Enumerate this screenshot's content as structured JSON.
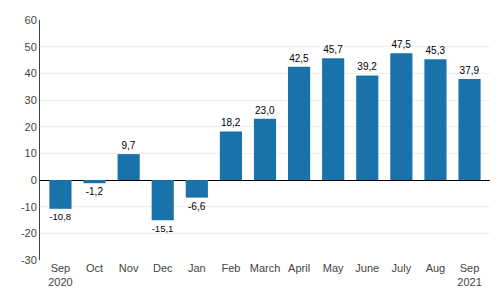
{
  "chart_data": {
    "type": "bar",
    "categories": [
      "Sep\n2020",
      "Oct",
      "Nov",
      "Dec",
      "Jan",
      "Feb",
      "March",
      "April",
      "May",
      "June",
      "July",
      "Aug",
      "Sep\n2021"
    ],
    "values": [
      -10.8,
      -1.2,
      9.7,
      -15.1,
      -6.6,
      18.2,
      23.0,
      42.5,
      45.7,
      39.2,
      47.5,
      45.3,
      37.9
    ],
    "value_labels": [
      "-10,8",
      "-1,2",
      "9,7",
      "-15,1",
      "-6,6",
      "18,2",
      "23,0",
      "42,5",
      "45,7",
      "39,2",
      "47,5",
      "45,3",
      "37,9"
    ],
    "color": "#1a72aa",
    "ylim": [
      -30,
      60
    ],
    "yticks": [
      -30,
      -20,
      -10,
      0,
      10,
      20,
      30,
      40,
      50,
      60
    ],
    "grid": true,
    "data_labels": true
  }
}
